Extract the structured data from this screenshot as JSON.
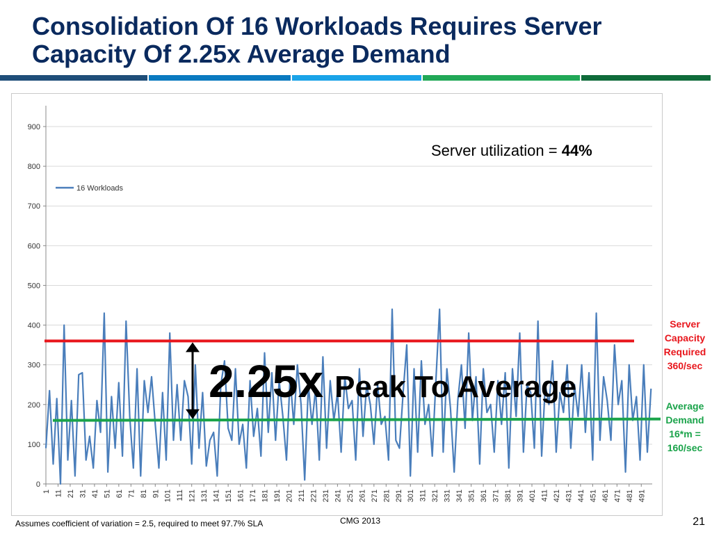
{
  "slide": {
    "title_line1": "Consolidation Of 16 Workloads Requires Server",
    "title_line2": "Capacity Of 2.25x Average Demand",
    "stripe_colors": [
      "#1f4e79",
      "#0a7ac0",
      "#1aa3e8",
      "#21a857",
      "#0f6b3a"
    ],
    "footnote": "Assumes coefficient of variation = 2.5,  required to meet 97.7% SLA",
    "footer_center": "CMG 2013",
    "page_number": "21"
  },
  "annotations": {
    "utilization_label": "Server utilization = ",
    "utilization_value": "44%",
    "peak_ratio": "2.25x",
    "peak_text": "Peak To Average",
    "capacity_label": [
      "Server",
      "Capacity",
      "Required",
      "360/sec"
    ],
    "capacity_color": "#e8161c",
    "average_label": [
      "Average",
      "Demand",
      "16*m =",
      "160/sec"
    ],
    "average_color": "#1aa34a"
  },
  "chart_data": {
    "type": "line",
    "xlabel": "",
    "ylabel": "",
    "ylim": [
      0,
      900
    ],
    "ytick_values": [
      0,
      100,
      200,
      300,
      400,
      500,
      600,
      700,
      800,
      900
    ],
    "yticks": [
      "0",
      "100",
      "200",
      "300",
      "400",
      "500",
      "600",
      "700",
      "800",
      "900"
    ],
    "xtick_values": [
      1,
      11,
      21,
      31,
      41,
      51,
      61,
      71,
      81,
      91,
      101,
      111,
      121,
      131,
      141,
      151,
      161,
      171,
      181,
      191,
      201,
      211,
      221,
      231,
      241,
      251,
      261,
      271,
      281,
      291,
      301,
      311,
      321,
      331,
      341,
      351,
      361,
      371,
      381,
      391,
      401,
      411,
      421,
      431,
      441,
      451,
      461,
      471,
      481,
      491
    ],
    "xticks": [
      "1",
      "11",
      "21",
      "31",
      "41",
      "51",
      "61",
      "71",
      "81",
      "91",
      "101",
      "111",
      "121",
      "131",
      "141",
      "151",
      "161",
      "171",
      "181",
      "191",
      "201",
      "211",
      "221",
      "231",
      "241",
      "251",
      "261",
      "271",
      "281",
      "291",
      "301",
      "311",
      "321",
      "331",
      "341",
      "351",
      "361",
      "371",
      "381",
      "391",
      "401",
      "411",
      "421",
      "431",
      "441",
      "451",
      "461",
      "471",
      "481",
      "491"
    ],
    "xlim": [
      1,
      500
    ],
    "grid": true,
    "legend": "upper-left",
    "series": [
      {
        "name": "16 Workloads",
        "color": "#4a7ebb",
        "x": [
          1,
          4,
          7,
          10,
          13,
          16,
          19,
          22,
          25,
          28,
          31,
          34,
          37,
          40,
          43,
          46,
          49,
          52,
          55,
          58,
          61,
          64,
          67,
          70,
          73,
          76,
          79,
          82,
          85,
          88,
          91,
          94,
          97,
          100,
          103,
          106,
          109,
          112,
          115,
          118,
          121,
          124,
          127,
          130,
          133,
          136,
          139,
          142,
          145,
          148,
          151,
          154,
          157,
          160,
          163,
          166,
          169,
          172,
          175,
          178,
          181,
          184,
          187,
          190,
          193,
          196,
          199,
          202,
          205,
          208,
          211,
          214,
          217,
          220,
          223,
          226,
          229,
          232,
          235,
          238,
          241,
          244,
          247,
          250,
          253,
          256,
          259,
          262,
          265,
          268,
          271,
          274,
          277,
          280,
          283,
          286,
          289,
          292,
          295,
          298,
          301,
          304,
          307,
          310,
          313,
          316,
          319,
          322,
          325,
          328,
          331,
          334,
          337,
          340,
          343,
          346,
          349,
          352,
          355,
          358,
          361,
          364,
          367,
          370,
          373,
          376,
          379,
          382,
          385,
          388,
          391,
          394,
          397,
          400,
          403,
          406,
          409,
          412,
          415,
          418,
          421,
          424,
          427,
          430,
          433,
          436,
          439,
          442,
          445,
          448,
          451,
          454,
          457,
          460,
          463,
          466,
          469,
          472,
          475,
          478,
          481,
          484,
          487,
          490,
          493,
          496,
          499
        ],
        "values": [
          90,
          235,
          50,
          215,
          0,
          400,
          60,
          210,
          20,
          275,
          280,
          60,
          120,
          40,
          210,
          130,
          430,
          30,
          220,
          90,
          255,
          70,
          410,
          170,
          40,
          290,
          20,
          260,
          180,
          270,
          150,
          40,
          230,
          60,
          380,
          110,
          250,
          110,
          260,
          220,
          50,
          300,
          90,
          230,
          45,
          110,
          130,
          20,
          250,
          310,
          140,
          110,
          290,
          100,
          150,
          40,
          260,
          120,
          190,
          70,
          330,
          130,
          280,
          110,
          260,
          170,
          60,
          270,
          150,
          300,
          200,
          10,
          250,
          150,
          240,
          60,
          320,
          90,
          260,
          160,
          230,
          80,
          270,
          190,
          210,
          60,
          290,
          120,
          250,
          200,
          100,
          250,
          150,
          170,
          60,
          440,
          110,
          90,
          230,
          350,
          20,
          290,
          80,
          310,
          150,
          200,
          70,
          260,
          440,
          80,
          290,
          190,
          30,
          210,
          300,
          140,
          380,
          160,
          270,
          50,
          290,
          180,
          200,
          80,
          260,
          150,
          280,
          40,
          290,
          170,
          380,
          80,
          250,
          230,
          90,
          410,
          70,
          250,
          200,
          310,
          80,
          230,
          180,
          300,
          90,
          250,
          170,
          300,
          130,
          280,
          60,
          430,
          110,
          270,
          210,
          110,
          350,
          200,
          260,
          30,
          300,
          160,
          220,
          60,
          300,
          80,
          240
        ]
      }
    ],
    "reference_lines": [
      {
        "label": "Server Capacity Required",
        "value": 360
      },
      {
        "label": "Average Demand",
        "value": 160
      }
    ]
  }
}
